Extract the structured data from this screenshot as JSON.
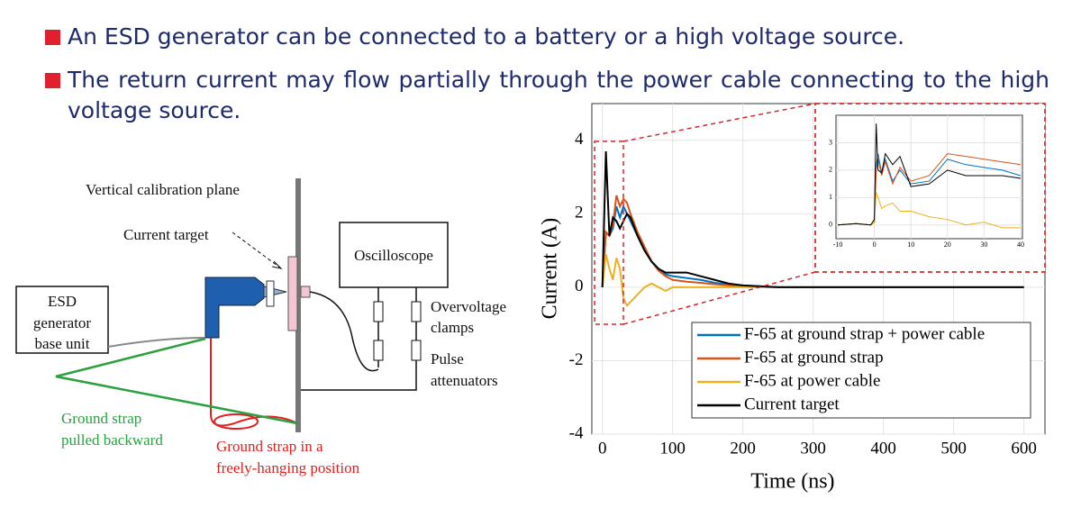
{
  "bullets": [
    "An ESD generator can be connected to a battery or a high voltage source.",
    "The return current may flow partially through the power cable connecting to the high voltage source."
  ],
  "diagram": {
    "plane": "Vertical calibration plane",
    "current_target": "Current target",
    "oscilloscope": "Oscilloscope",
    "esd_generator": [
      "ESD",
      "generator",
      "base unit"
    ],
    "clamps": [
      "Overvoltage",
      "clamps"
    ],
    "attenuators": [
      "Pulse",
      "attenuators"
    ],
    "strap_backward": [
      "Ground strap",
      "pulled backward"
    ],
    "strap_hanging": [
      "Ground strap in a",
      "freely-hanging position"
    ]
  },
  "chart_data": [
    {
      "type": "line",
      "xlabel": "Time (ns)",
      "ylabel": "Current (A)",
      "x": [
        0,
        5,
        10,
        15,
        20,
        25,
        30,
        35,
        40,
        50,
        60,
        70,
        80,
        90,
        100,
        120,
        140,
        160,
        180,
        200,
        250,
        300,
        400,
        500,
        600
      ],
      "series": [
        {
          "name": "F-65 at ground strap + power cable",
          "color": "#0072bd",
          "values": [
            0,
            1.5,
            1.4,
            1.6,
            2.2,
            1.9,
            2.2,
            2.0,
            1.8,
            1.4,
            1.0,
            0.7,
            0.5,
            0.35,
            0.3,
            0.25,
            0.2,
            0.12,
            0.08,
            0.05,
            0,
            0,
            0,
            0,
            0
          ]
        },
        {
          "name": "F-65 at ground strap",
          "color": "#d95319",
          "values": [
            0,
            1.5,
            1.4,
            1.7,
            2.5,
            2.2,
            2.4,
            2.3,
            2.0,
            1.5,
            1.1,
            0.7,
            0.45,
            0.3,
            0.2,
            0.15,
            0.12,
            0.08,
            0.05,
            0.03,
            0,
            0,
            0,
            0,
            0
          ]
        },
        {
          "name": "F-65 at power cable",
          "color": "#edb120",
          "values": [
            0,
            0.9,
            0.5,
            0.2,
            0.8,
            0.5,
            -0.3,
            -0.5,
            -0.4,
            -0.2,
            0,
            0.1,
            0,
            -0.1,
            0,
            0,
            0,
            0,
            0,
            0,
            0,
            0,
            0,
            0,
            0
          ]
        },
        {
          "name": "Current target",
          "color": "#000000",
          "values": [
            0,
            3.7,
            1.4,
            1.9,
            1.8,
            1.6,
            1.8,
            2.0,
            1.9,
            1.4,
            1.0,
            0.7,
            0.5,
            0.4,
            0.4,
            0.4,
            0.3,
            0.2,
            0.1,
            0.05,
            0,
            0,
            0,
            0,
            0
          ]
        }
      ],
      "xlim": [
        -15,
        630
      ],
      "ylim": [
        -4,
        5
      ],
      "xticks": [
        0,
        100,
        200,
        300,
        400,
        500,
        600
      ],
      "yticks": [
        -4,
        -2,
        0,
        2,
        4
      ],
      "grid": true,
      "legend": "lower right"
    },
    {
      "type": "line",
      "x": [
        -10,
        -5,
        -1,
        0,
        0.5,
        1,
        2,
        3,
        5,
        7,
        10,
        15,
        20,
        25,
        30,
        35,
        40
      ],
      "series": [
        {
          "color": "#0072bd",
          "values": [
            0,
            0.05,
            0,
            0.1,
            2.2,
            2.6,
            1.9,
            2.4,
            1.6,
            2.0,
            1.5,
            1.6,
            2.4,
            2.2,
            2.1,
            2.0,
            1.8
          ]
        },
        {
          "color": "#d95319",
          "values": [
            0,
            0.05,
            0,
            0.1,
            2.0,
            2.4,
            1.8,
            2.3,
            1.5,
            2.1,
            1.6,
            1.8,
            2.6,
            2.5,
            2.4,
            2.3,
            2.2
          ]
        },
        {
          "color": "#edb120",
          "values": [
            0,
            0.05,
            0,
            0.1,
            1.2,
            1.0,
            0.6,
            0.7,
            0.8,
            0.5,
            0.5,
            0.3,
            0.2,
            0.0,
            0.1,
            -0.1,
            -0.1
          ]
        },
        {
          "color": "#000000",
          "values": [
            0,
            0.05,
            0,
            0.2,
            3.7,
            2.0,
            1.9,
            2.6,
            2.2,
            2.5,
            1.4,
            1.5,
            2.0,
            1.8,
            1.8,
            1.8,
            1.7
          ]
        }
      ],
      "xlim": [
        -10.5,
        40.5
      ],
      "ylim": [
        -0.5,
        4
      ],
      "xticks": [
        -10,
        0,
        10,
        20,
        30,
        40
      ],
      "yticks": [
        0,
        1,
        2,
        3
      ],
      "grid": true
    }
  ]
}
